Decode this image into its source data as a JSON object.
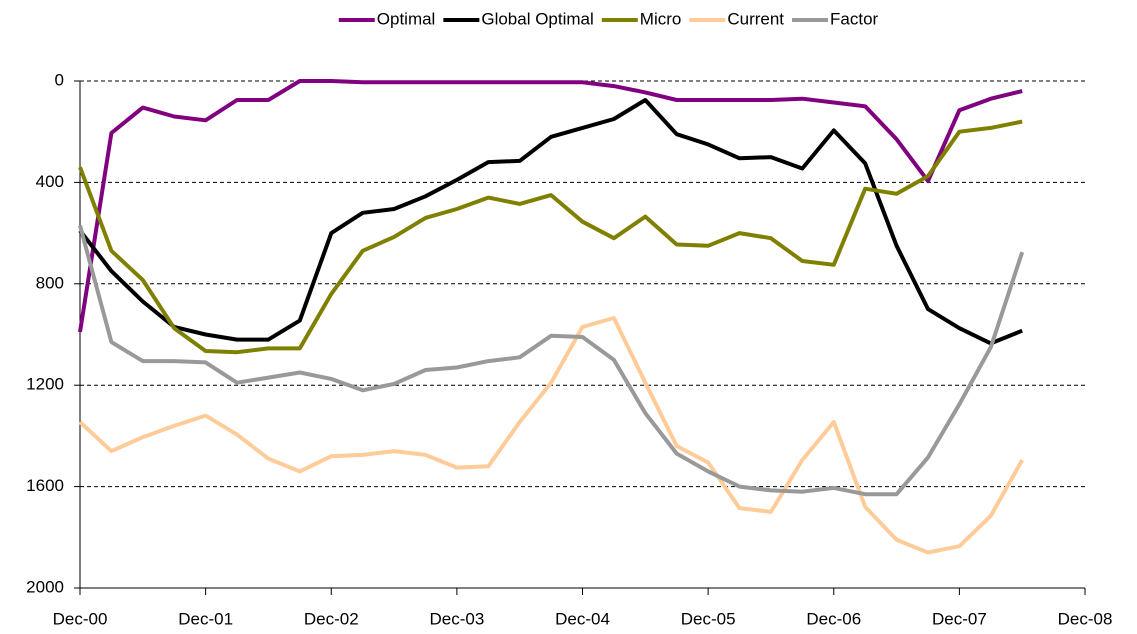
{
  "chart_data": {
    "type": "line",
    "categories": [
      "Dec-00",
      null,
      null,
      null,
      "Dec-01",
      null,
      null,
      null,
      "Dec-02",
      null,
      null,
      null,
      "Dec-03",
      null,
      null,
      null,
      "Dec-04",
      null,
      null,
      null,
      "Dec-05",
      null,
      null,
      null,
      "Dec-06",
      null,
      null,
      null,
      "Dec-07",
      null,
      null,
      null,
      "Dec-08"
    ],
    "ylim": [
      0,
      2000
    ],
    "y_inverted": true,
    "yticks": [
      0,
      400,
      800,
      1200,
      1600,
      2000
    ],
    "grid": true,
    "legend": "top",
    "series": [
      {
        "name": "Optimal",
        "color": "#800080",
        "values": [
          990,
          205,
          105,
          140,
          155,
          75,
          75,
          0,
          0,
          5,
          5,
          5,
          5,
          5,
          5,
          5,
          5,
          20,
          45,
          75,
          75,
          75,
          75,
          70,
          85,
          100,
          230,
          395,
          115,
          70,
          40,
          null,
          null
        ]
      },
      {
        "name": "Global Optimal",
        "color": "#000000",
        "values": [
          590,
          750,
          870,
          970,
          1000,
          1020,
          1020,
          945,
          600,
          520,
          505,
          455,
          390,
          320,
          315,
          220,
          185,
          150,
          75,
          210,
          250,
          305,
          300,
          345,
          195,
          325,
          650,
          900,
          975,
          1035,
          985,
          null,
          null
        ]
      },
      {
        "name": "Micro",
        "color": "#808000",
        "values": [
          340,
          670,
          785,
          975,
          1065,
          1070,
          1055,
          1055,
          840,
          670,
          615,
          540,
          505,
          460,
          485,
          450,
          555,
          620,
          535,
          645,
          650,
          600,
          620,
          710,
          725,
          425,
          445,
          375,
          200,
          185,
          160,
          null,
          null
        ]
      },
      {
        "name": "Current",
        "color": "#ffcc99",
        "values": [
          1345,
          1460,
          1405,
          1360,
          1320,
          1395,
          1490,
          1540,
          1480,
          1475,
          1460,
          1475,
          1525,
          1520,
          1345,
          1190,
          970,
          935,
          1190,
          1440,
          1505,
          1685,
          1700,
          1495,
          1345,
          1680,
          1810,
          1860,
          1835,
          1715,
          1495,
          null,
          null
        ]
      },
      {
        "name": "Factor",
        "color": "#999999",
        "values": [
          570,
          1030,
          1105,
          1105,
          1110,
          1190,
          1170,
          1150,
          1175,
          1220,
          1195,
          1140,
          1130,
          1105,
          1090,
          1005,
          1010,
          1100,
          1310,
          1470,
          1540,
          1600,
          1615,
          1620,
          1605,
          1630,
          1630,
          1485,
          1275,
          1050,
          675,
          null,
          null
        ]
      }
    ]
  }
}
